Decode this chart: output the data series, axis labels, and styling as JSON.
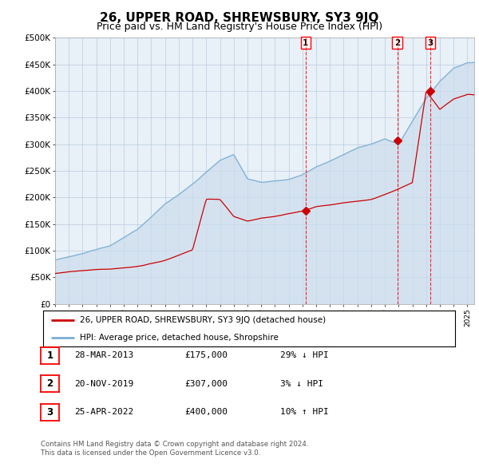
{
  "title": "26, UPPER ROAD, SHREWSBURY, SY3 9JQ",
  "subtitle": "Price paid vs. HM Land Registry's House Price Index (HPI)",
  "title_fontsize": 11,
  "subtitle_fontsize": 9,
  "hpi_color": "#7bafd4",
  "price_color": "#cc0000",
  "bg_color": "#ccdded",
  "plot_bg": "#e8f0f8",
  "grid_color": "#bbccdd",
  "ylim": [
    0,
    500000
  ],
  "yticks": [
    0,
    50000,
    100000,
    150000,
    200000,
    250000,
    300000,
    350000,
    400000,
    450000,
    500000
  ],
  "sales": [
    {
      "date_num": 2013.23,
      "price": 175000,
      "label": "1"
    },
    {
      "date_num": 2019.9,
      "price": 307000,
      "label": "2"
    },
    {
      "date_num": 2022.31,
      "price": 400000,
      "label": "3"
    }
  ],
  "legend_entries": [
    "26, UPPER ROAD, SHREWSBURY, SY3 9JQ (detached house)",
    "HPI: Average price, detached house, Shropshire"
  ],
  "table_rows": [
    {
      "num": "1",
      "date": "28-MAR-2013",
      "price": "£175,000",
      "change": "29% ↓ HPI"
    },
    {
      "num": "2",
      "date": "20-NOV-2019",
      "price": "£307,000",
      "change": "3% ↓ HPI"
    },
    {
      "num": "3",
      "date": "25-APR-2022",
      "price": "£400,000",
      "change": "10% ↑ HPI"
    }
  ],
  "footer": "Contains HM Land Registry data © Crown copyright and database right 2024.\nThis data is licensed under the Open Government Licence v3.0.",
  "xmin": 1995.0,
  "xmax": 2025.5,
  "hpi_key_x": [
    1995,
    1997,
    1999,
    2001,
    2003,
    2005,
    2007,
    2008,
    2009,
    2010,
    2011,
    2012,
    2013,
    2014,
    2015,
    2016,
    2017,
    2018,
    2019,
    2020,
    2021,
    2022,
    2023,
    2024,
    2025
  ],
  "hpi_key_y": [
    82000,
    90000,
    105000,
    140000,
    190000,
    225000,
    265000,
    275000,
    230000,
    225000,
    230000,
    235000,
    245000,
    260000,
    270000,
    280000,
    290000,
    295000,
    305000,
    295000,
    340000,
    385000,
    420000,
    445000,
    455000
  ],
  "price_key_x": [
    1995,
    1997,
    1999,
    2001,
    2003,
    2005,
    2006,
    2007,
    2008,
    2009,
    2010,
    2011,
    2012,
    2013,
    2014,
    2015,
    2016,
    2017,
    2018,
    2019,
    2020,
    2021,
    2022,
    2023,
    2024,
    2025
  ],
  "price_key_y": [
    57000,
    60000,
    65000,
    73000,
    83000,
    100000,
    195000,
    195000,
    165000,
    158000,
    165000,
    168000,
    172000,
    175000,
    182000,
    185000,
    190000,
    195000,
    200000,
    210000,
    220000,
    230000,
    400000,
    365000,
    385000,
    395000
  ]
}
